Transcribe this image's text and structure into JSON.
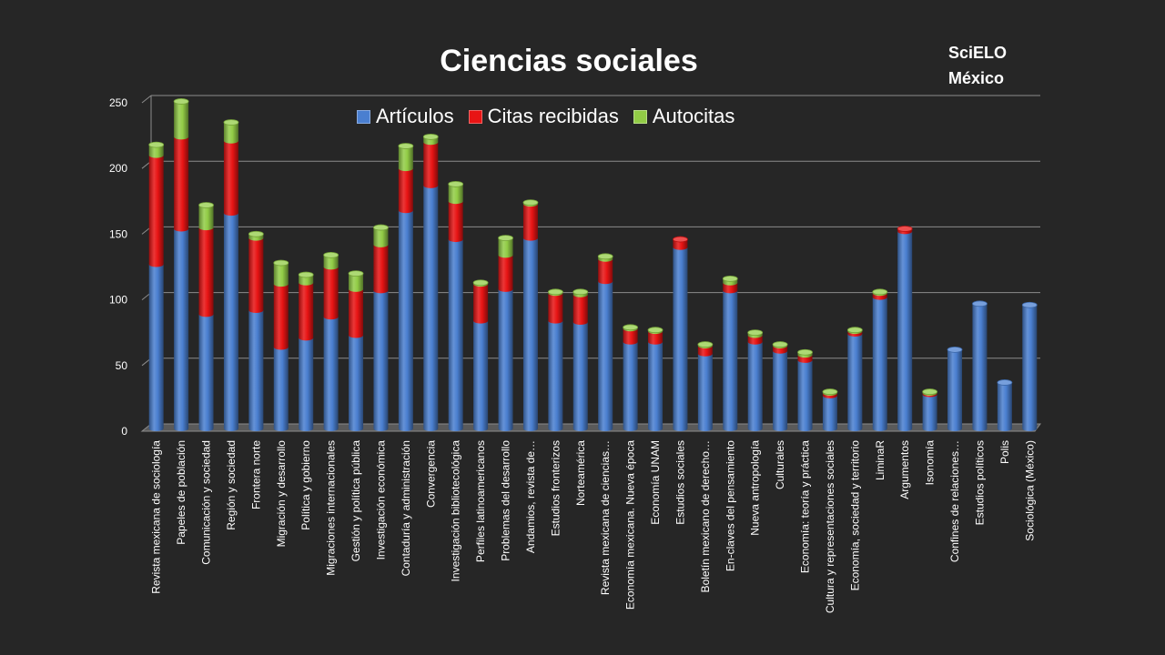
{
  "title": "Ciencias sociales",
  "brand": {
    "line1": "SciELO",
    "line2": "México"
  },
  "chart_data": {
    "type": "bar",
    "stacked": true,
    "grid": true,
    "legend_position": "top-center",
    "ylim": [
      0,
      250
    ],
    "yticks": [
      "250",
      "200",
      "150",
      "100",
      "50",
      "0"
    ],
    "categories": [
      "Revista mexicana de sociología",
      "Papeles de población",
      "Comunicación y sociedad",
      "Región y sociedad",
      "Frontera norte",
      "Migración y desarrollo",
      "Política y gobierno",
      "Migraciones internacionales",
      "Gestión y política pública",
      "Investigación económica",
      "Contaduría y administración",
      "Convergencia",
      "Investigación bibliotecológica",
      "Perfiles latinoamericanos",
      "Problemas del desarrollo",
      "Andamios, revista de…",
      "Estudios fronterizos",
      "Norteamérica",
      "Revista mexicana de ciencias…",
      "Economía mexicana. Nueva época",
      "Economía UNAM",
      "Estudios sociales",
      "Boletín mexicano de derecho…",
      "En-claves del pensamiento",
      "Nueva antropología",
      "Culturales",
      "Economía: teoría y práctica",
      "Cultura y representaciones sociales",
      "Economía, sociedad y territorio",
      "LiminaR",
      "Argumentos",
      "Isonomía",
      "Confines de relaciones…",
      "Estudios políticos",
      "Polis",
      "Sociológica (México)"
    ],
    "series": [
      {
        "name": "Artículos",
        "color": "#4a7fd0",
        "values": [
          125,
          152,
          87,
          164,
          90,
          62,
          69,
          85,
          71,
          105,
          166,
          185,
          144,
          82,
          106,
          145,
          82,
          81,
          112,
          66,
          66,
          138,
          57,
          105,
          66,
          59,
          52,
          25,
          72,
          100,
          150,
          26,
          60,
          95,
          35,
          94
        ]
      },
      {
        "name": "Citas recibidas",
        "color": "#e81414",
        "values": [
          83,
          70,
          66,
          55,
          55,
          48,
          42,
          38,
          35,
          35,
          32,
          33,
          29,
          28,
          26,
          26,
          21,
          21,
          17,
          10,
          8,
          6,
          6,
          6,
          5,
          4,
          4,
          2,
          2,
          3,
          2,
          1,
          0,
          0,
          0,
          0
        ]
      },
      {
        "name": "Autocitas",
        "color": "#92cc46",
        "values": [
          8,
          27,
          17,
          14,
          3,
          16,
          6,
          9,
          12,
          13,
          17,
          4,
          13,
          1,
          13,
          1,
          1,
          2,
          2,
          1,
          1,
          0,
          1,
          3,
          2,
          1,
          2,
          1,
          1,
          1,
          0,
          1,
          0,
          0,
          0,
          0
        ]
      }
    ]
  }
}
